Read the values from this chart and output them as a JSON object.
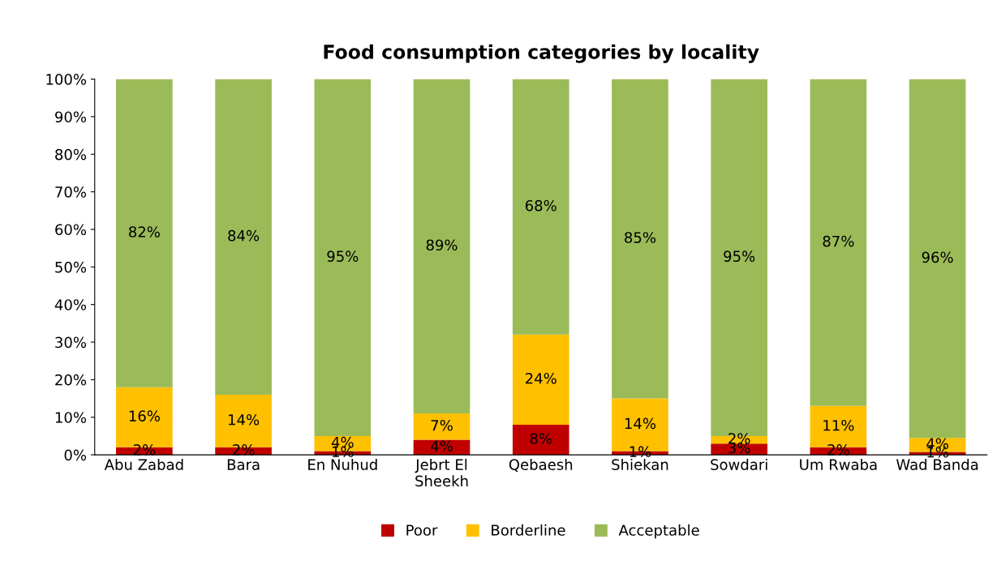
{
  "chart_data": {
    "type": "bar",
    "stacked": true,
    "title": "Food consumption categories by locality",
    "categories": [
      "Abu Zabad",
      "Bara",
      "En Nuhud",
      "Jebrt El\nSheekh",
      "Qebaesh",
      "Shiekan",
      "Sowdari",
      "Um Rwaba",
      "Wad Banda"
    ],
    "series": [
      {
        "name": "Poor",
        "color": "#c00000",
        "values": [
          2,
          2,
          1,
          4,
          8,
          1,
          3,
          2,
          0.8
        ],
        "value_labels": [
          "2%",
          "2%",
          "1%",
          "4%",
          "8%",
          "1%",
          "3%",
          "2%",
          "1%"
        ]
      },
      {
        "name": "Borderline",
        "color": "#ffc000",
        "values": [
          16,
          14,
          4,
          7,
          24,
          14,
          2,
          11,
          3.7
        ],
        "value_labels": [
          "16%",
          "14%",
          "4%",
          "7%",
          "24%",
          "14%",
          "2%",
          "11%",
          "4%"
        ]
      },
      {
        "name": "Acceptable",
        "color": "#9bbb59",
        "values": [
          82,
          84,
          95,
          89,
          68,
          85,
          95,
          87,
          95.5
        ],
        "value_labels": [
          "82%",
          "84%",
          "95%",
          "89%",
          "68%",
          "85%",
          "95%",
          "87%",
          "96%"
        ]
      }
    ],
    "ylim": [
      0,
      100
    ],
    "yticks": [
      {
        "value": 0,
        "label": "0%"
      },
      {
        "value": 10,
        "label": "10%"
      },
      {
        "value": 20,
        "label": "20%"
      },
      {
        "value": 30,
        "label": "30%"
      },
      {
        "value": 40,
        "label": "40%"
      },
      {
        "value": 50,
        "label": "50%"
      },
      {
        "value": 60,
        "label": "60%"
      },
      {
        "value": 70,
        "label": "70%"
      },
      {
        "value": 80,
        "label": "80%"
      },
      {
        "value": 90,
        "label": "90%"
      },
      {
        "value": 100,
        "label": "100%"
      }
    ],
    "grid": false,
    "legend": "bottom"
  }
}
